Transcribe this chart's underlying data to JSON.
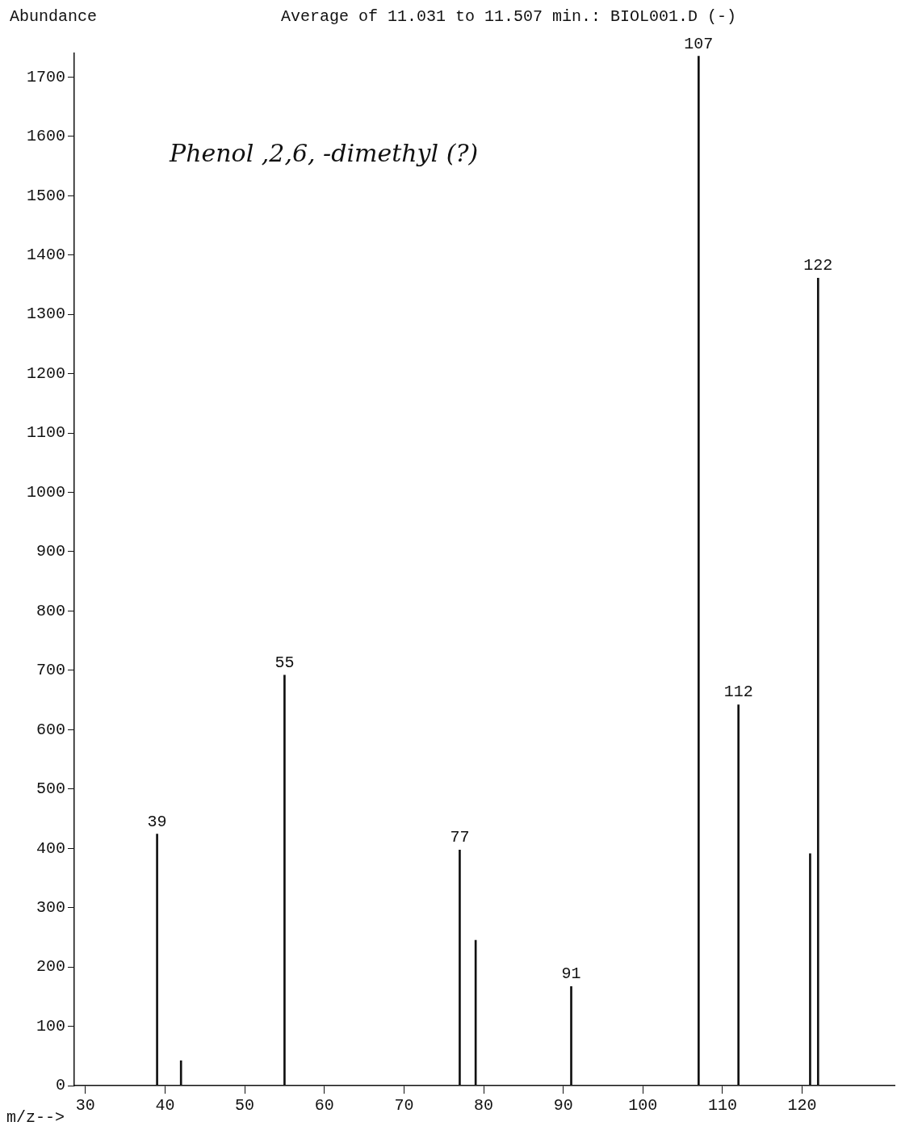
{
  "chart_data": {
    "type": "bar",
    "title": "Average of 11.031 to 11.507 min.: BIOL001.D (-)",
    "xlabel": "m/z-->",
    "ylabel": "Abundance",
    "x": [
      39,
      42,
      55,
      77,
      79,
      91,
      107,
      112,
      121,
      122
    ],
    "values": [
      424,
      42,
      692,
      397,
      245,
      167,
      1735,
      642,
      391,
      1361
    ],
    "color": "#111111",
    "xlim": [
      28.6,
      131.6
    ],
    "xticks": [
      30,
      40,
      50,
      60,
      70,
      80,
      90,
      100,
      110,
      120
    ],
    "ylim": [
      0,
      1740
    ],
    "yticks": [
      0,
      100,
      200,
      300,
      400,
      500,
      600,
      700,
      800,
      900,
      1000,
      1100,
      1200,
      1300,
      1400,
      1500,
      1600,
      1700
    ],
    "grid": false,
    "legend": false,
    "annotations": [
      {
        "text": "39",
        "x": 39,
        "y": 424
      },
      {
        "text": "55",
        "x": 55,
        "y": 692
      },
      {
        "text": "77",
        "x": 77,
        "y": 397
      },
      {
        "text": "91",
        "x": 91,
        "y": 167
      },
      {
        "text": "107",
        "x": 107,
        "y": 1735
      },
      {
        "text": "112",
        "x": 112,
        "y": 642
      },
      {
        "text": "122",
        "x": 122,
        "y": 1361
      },
      "Phenol ,2,6, -dimethyl (?)"
    ]
  }
}
